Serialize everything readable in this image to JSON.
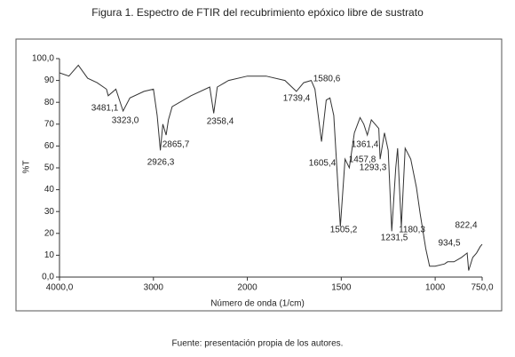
{
  "chart_data": {
    "type": "line",
    "title": "Figura 1. Espectro de FTIR del recubrimiento epóxico libre de sustrato",
    "xlabel": "Número de onda (1/cm)",
    "ylabel": "%T",
    "footer": "Fuente: presentación propia de los autores.",
    "x_reversed": true,
    "x_break": 2000,
    "xlim": [
      4000,
      750
    ],
    "ylim": [
      0,
      100
    ],
    "xticks": [
      {
        "value": 4000,
        "label": "4000,0"
      },
      3000,
      2000,
      1500,
      1000,
      {
        "value": 750,
        "label": "750,0"
      }
    ],
    "yticks": [
      0,
      10,
      20,
      30,
      40,
      50,
      60,
      70,
      80,
      90,
      100
    ],
    "ytick_labels": [
      "0,0",
      "10",
      "20",
      "30",
      "40",
      "50",
      "60",
      "70",
      "80",
      "90",
      "100,0"
    ],
    "grid": false,
    "series": [
      {
        "color": "#333333",
        "x": [
          4000,
          3900,
          3800,
          3700,
          3600,
          3500,
          3481,
          3400,
          3323,
          3250,
          3100,
          3000,
          2960,
          2926,
          2900,
          2865,
          2840,
          2800,
          2600,
          2400,
          2358,
          2320,
          2200,
          2000,
          1900,
          1800,
          1739,
          1700,
          1660,
          1640,
          1605,
          1580,
          1560,
          1540,
          1505,
          1480,
          1457,
          1430,
          1400,
          1380,
          1361,
          1340,
          1300,
          1293,
          1270,
          1250,
          1231,
          1210,
          1200,
          1180,
          1160,
          1130,
          1100,
          1080,
          1050,
          1030,
          1000,
          950,
          934,
          900,
          860,
          830,
          822,
          800,
          780,
          760,
          750
        ],
        "values": [
          93.5,
          92,
          97,
          91,
          89,
          86,
          83,
          86,
          76,
          82,
          85,
          86,
          74,
          58,
          70,
          65,
          72,
          78,
          83,
          87,
          75,
          87,
          90,
          92,
          92,
          90,
          85,
          89,
          90,
          86,
          62,
          81,
          82,
          74,
          23,
          54,
          50,
          66,
          73,
          70,
          65,
          72,
          68,
          54,
          66,
          58,
          21,
          50,
          59,
          23,
          59,
          54,
          41,
          29,
          13,
          5,
          5,
          6,
          7,
          7,
          9,
          11,
          3,
          9,
          11,
          14,
          15
        ]
      }
    ],
    "annotations": [
      "3481,1",
      "3323,0",
      "2926,3",
      "2865,7",
      "2358,4",
      "1739,4",
      "1580,6",
      "1605,4",
      "1457,8",
      "1361,4",
      "1293,3",
      "1505,2",
      "1231,5",
      "1180,3",
      "934,5",
      "822,4"
    ]
  }
}
